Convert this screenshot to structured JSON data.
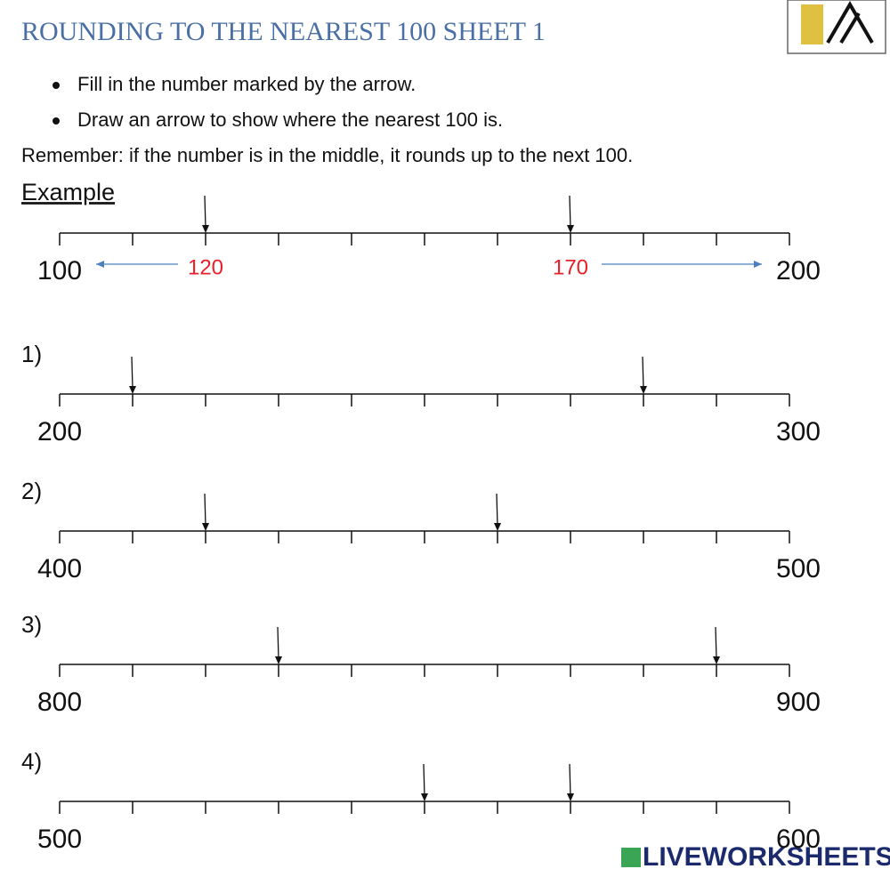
{
  "header": {
    "title": "ROUNDING TO THE NEAREST 100 SHEET 1"
  },
  "instructions": [
    "Fill in the number marked by the arrow.",
    "Draw an arrow to show where the nearest 100 is."
  ],
  "remember": "Remember: if the number is in the middle, it rounds up to the next 100.",
  "example": {
    "heading": "Example",
    "start": 100,
    "end": 200,
    "arrows": [
      120,
      170
    ]
  },
  "exercises": [
    {
      "label": "1)",
      "start": 200,
      "end": 300,
      "arrows": [
        210,
        280
      ]
    },
    {
      "label": "2)",
      "start": 400,
      "end": 500,
      "arrows": [
        420,
        460
      ]
    },
    {
      "label": "3)",
      "start": 800,
      "end": 900,
      "arrows": [
        830,
        890
      ]
    },
    {
      "label": "4)",
      "start": 500,
      "end": 600,
      "arrows": [
        550,
        570
      ]
    }
  ],
  "watermark": "LIVEWORKSHEETS"
}
